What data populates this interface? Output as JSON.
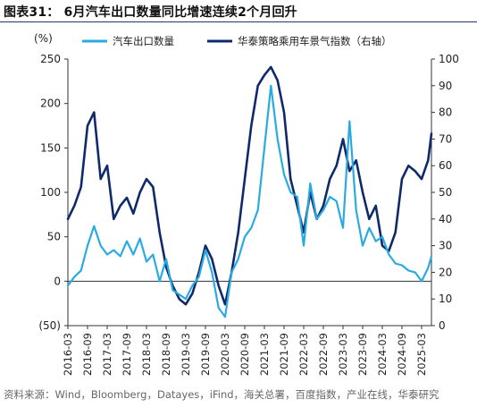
{
  "figure": {
    "title": "图表31： 6月汽车出口数量同比增速连续2个月回升",
    "source": "资料来源：Wind，Bloomberg，Datayes，iFind，海关总署，百度指数，产业在线，华泰研究"
  },
  "chart_data": {
    "type": "line",
    "y_unit_label": "(%)",
    "x": [
      "2016-03",
      "2016-05",
      "2016-07",
      "2016-09",
      "2016-11",
      "2017-01",
      "2017-03",
      "2017-05",
      "2017-07",
      "2017-09",
      "2017-11",
      "2018-01",
      "2018-03",
      "2018-05",
      "2018-07",
      "2018-09",
      "2018-11",
      "2019-01",
      "2019-03",
      "2019-05",
      "2019-07",
      "2019-09",
      "2019-11",
      "2020-01",
      "2020-03",
      "2020-05",
      "2020-07",
      "2020-09",
      "2020-11",
      "2021-01",
      "2021-03",
      "2021-05",
      "2021-07",
      "2021-09",
      "2021-11",
      "2022-01",
      "2022-03",
      "2022-05",
      "2022-07",
      "2022-09",
      "2022-11",
      "2023-01",
      "2023-03",
      "2023-05",
      "2023-07",
      "2023-09",
      "2023-11",
      "2024-01",
      "2024-03",
      "2024-05",
      "2024-07",
      "2024-09",
      "2024-11",
      "2025-01",
      "2025-03",
      "2025-05",
      "2025-06"
    ],
    "x_tick_labels": [
      "2016-03",
      "2016-09",
      "2017-03",
      "2017-09",
      "2018-03",
      "2018-09",
      "2019-03",
      "2019-09",
      "2020-03",
      "2020-09",
      "2021-03",
      "2021-09",
      "2022-03",
      "2022-09",
      "2023-03",
      "2023-09",
      "2024-03",
      "2024-09",
      "2025-03"
    ],
    "left_axis": {
      "ylim": [
        -50,
        250
      ],
      "ticks": [
        -50,
        0,
        50,
        100,
        150,
        200,
        250
      ],
      "tick_labels": [
        "(50)",
        "0",
        "50",
        "100",
        "150",
        "200",
        "250"
      ]
    },
    "right_axis": {
      "ylim": [
        0,
        100
      ],
      "ticks": [
        0,
        10,
        20,
        30,
        40,
        50,
        60,
        70,
        80,
        90,
        100
      ],
      "tick_labels": [
        "0",
        "10",
        "20",
        "30",
        "40",
        "50",
        "60",
        "70",
        "80",
        "90",
        "100"
      ]
    },
    "legend_position": "top",
    "series": [
      {
        "name": "汽车出口数量",
        "axis": "left",
        "color": "#29abe2",
        "values": [
          -5,
          5,
          12,
          40,
          62,
          40,
          30,
          35,
          28,
          45,
          30,
          48,
          22,
          30,
          0,
          25,
          -10,
          -15,
          -20,
          -5,
          5,
          35,
          10,
          -30,
          -40,
          10,
          25,
          50,
          60,
          80,
          150,
          220,
          160,
          120,
          100,
          95,
          40,
          110,
          70,
          80,
          95,
          90,
          60,
          180,
          80,
          40,
          60,
          45,
          50,
          30,
          20,
          18,
          12,
          10,
          0,
          15,
          28
        ]
      },
      {
        "name": "华泰策略乘用车景气指数（右轴）",
        "axis": "right",
        "color": "#0f2a6b",
        "values": [
          40,
          45,
          52,
          75,
          80,
          55,
          60,
          40,
          45,
          48,
          42,
          50,
          55,
          52,
          35,
          22,
          15,
          10,
          8,
          12,
          20,
          30,
          25,
          15,
          8,
          20,
          35,
          55,
          75,
          90,
          94,
          97,
          92,
          80,
          55,
          45,
          35,
          50,
          40,
          45,
          55,
          60,
          70,
          58,
          62,
          50,
          40,
          45,
          30,
          28,
          35,
          55,
          60,
          58,
          55,
          62,
          72
        ]
      }
    ]
  }
}
